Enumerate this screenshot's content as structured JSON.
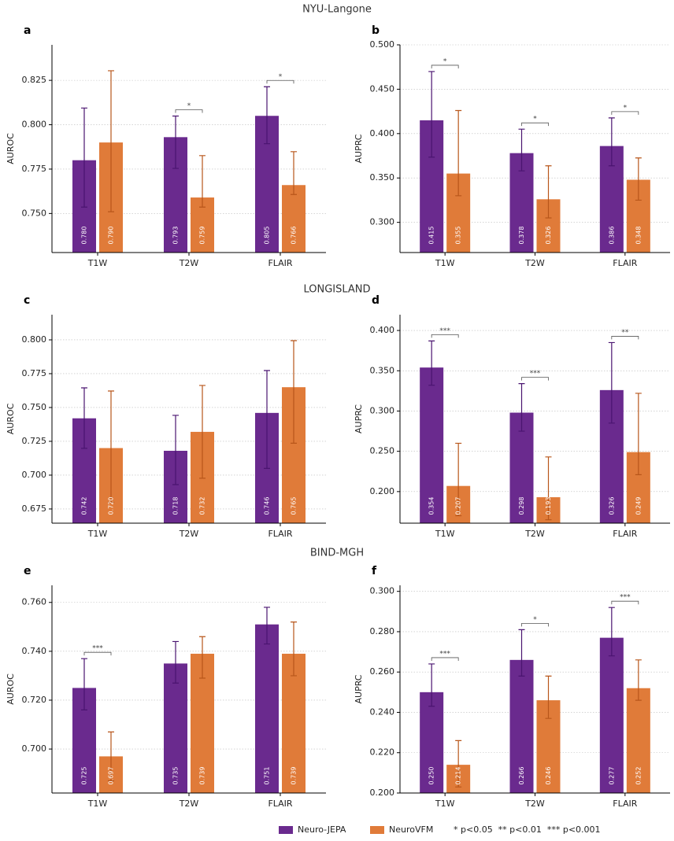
{
  "section_titles": [
    "NYU-Langone",
    "LONGISLAND",
    "BIND-MGH"
  ],
  "legend_note": "* p<0.05  ** p<0.01  *** p<0.001",
  "chart_data": [
    {
      "type": "bar",
      "panel": "a",
      "ylabel": "AUROC",
      "categories": [
        "T1W",
        "T2W",
        "FLAIR"
      ],
      "ylim": [
        0.728,
        0.845
      ],
      "yticks": [
        {
          "value": 0.75,
          "label": "0.750"
        },
        {
          "value": 0.775,
          "label": "0.775"
        },
        {
          "value": 0.8,
          "label": "0.800"
        },
        {
          "value": 0.825,
          "label": "0.825"
        }
      ],
      "grid": true,
      "significance": [
        null,
        "*",
        "*"
      ],
      "series": [
        {
          "name": "Neuro-JEPA",
          "color": "#6a2a8e",
          "error_color": "#4a1470",
          "values": [
            0.78,
            0.793,
            0.805
          ],
          "value_labels": [
            "0.780",
            "0.793",
            "0.805"
          ],
          "ci_low": [
            0.7536,
            0.7754,
            0.7893
          ],
          "ci_high": [
            0.8094,
            0.8049,
            0.8214
          ]
        },
        {
          "name": "NeuroVFM",
          "color": "#e07b39",
          "error_color": "#b8561a",
          "values": [
            0.79,
            0.759,
            0.766
          ],
          "value_labels": [
            "0.790",
            "0.759",
            "0.766"
          ],
          "ci_low": [
            0.751,
            0.7536,
            0.7607
          ],
          "ci_high": [
            0.8304,
            0.7826,
            0.7848
          ]
        }
      ]
    },
    {
      "type": "bar",
      "panel": "b",
      "ylabel": "AUPRC",
      "categories": [
        "T1W",
        "T2W",
        "FLAIR"
      ],
      "ylim": [
        0.266,
        0.5
      ],
      "yticks": [
        {
          "value": 0.3,
          "label": "0.300"
        },
        {
          "value": 0.35,
          "label": "0.350"
        },
        {
          "value": 0.4,
          "label": "0.400"
        },
        {
          "value": 0.45,
          "label": "0.450"
        },
        {
          "value": 0.5,
          "label": "0.500"
        }
      ],
      "grid": true,
      "significance": [
        "*",
        "*",
        "*"
      ],
      "series": [
        {
          "name": "Neuro-JEPA",
          "color": "#6a2a8e",
          "error_color": "#4a1470",
          "values": [
            0.415,
            0.378,
            0.386
          ],
          "value_labels": [
            "0.415",
            "0.378",
            "0.386"
          ],
          "ci_low": [
            0.3735,
            0.358,
            0.3637
          ],
          "ci_high": [
            0.4699,
            0.405,
            0.4177
          ]
        },
        {
          "name": "NeuroVFM",
          "color": "#e07b39",
          "error_color": "#b8561a",
          "values": [
            0.355,
            0.326,
            0.348
          ],
          "value_labels": [
            "0.355",
            "0.326",
            "0.348"
          ],
          "ci_low": [
            0.33,
            0.305,
            0.325
          ],
          "ci_high": [
            0.426,
            0.3637,
            0.3726
          ]
        }
      ]
    },
    {
      "type": "bar",
      "panel": "c",
      "ylabel": "AUROC",
      "categories": [
        "T1W",
        "T2W",
        "FLAIR"
      ],
      "ylim": [
        0.6645,
        0.8186
      ],
      "yticks": [
        {
          "value": 0.675,
          "label": "0.675"
        },
        {
          "value": 0.7,
          "label": "0.700"
        },
        {
          "value": 0.725,
          "label": "0.725"
        },
        {
          "value": 0.75,
          "label": "0.750"
        },
        {
          "value": 0.775,
          "label": "0.775"
        },
        {
          "value": 0.8,
          "label": "0.800"
        }
      ],
      "grid": true,
      "significance": [
        null,
        null,
        null
      ],
      "series": [
        {
          "name": "Neuro-JEPA",
          "color": "#6a2a8e",
          "error_color": "#4a1470",
          "values": [
            0.742,
            0.718,
            0.746
          ],
          "value_labels": [
            "0.742",
            "0.718",
            "0.746"
          ],
          "ci_low": [
            0.7198,
            0.693,
            0.705
          ],
          "ci_high": [
            0.7645,
            0.7442,
            0.7773
          ]
        },
        {
          "name": "NeuroVFM",
          "color": "#e07b39",
          "error_color": "#b8561a",
          "values": [
            0.72,
            0.732,
            0.765
          ],
          "value_labels": [
            "0.720",
            "0.732",
            "0.765"
          ],
          "ci_low": [
            0.68,
            0.6977,
            0.7236
          ],
          "ci_high": [
            0.7622,
            0.7663,
            0.7994
          ]
        }
      ]
    },
    {
      "type": "bar",
      "panel": "d",
      "ylabel": "AUPRC",
      "categories": [
        "T1W",
        "T2W",
        "FLAIR"
      ],
      "ylim": [
        0.1608,
        0.4196
      ],
      "yticks": [
        {
          "value": 0.2,
          "label": "0.200"
        },
        {
          "value": 0.25,
          "label": "0.250"
        },
        {
          "value": 0.3,
          "label": "0.300"
        },
        {
          "value": 0.35,
          "label": "0.350"
        },
        {
          "value": 0.4,
          "label": "0.400"
        }
      ],
      "grid": true,
      "significance": [
        "***",
        "***",
        "**"
      ],
      "series": [
        {
          "name": "Neuro-JEPA",
          "color": "#6a2a8e",
          "error_color": "#4a1470",
          "values": [
            0.354,
            0.298,
            0.326
          ],
          "value_labels": [
            "0.354",
            "0.298",
            "0.326"
          ],
          "ci_low": [
            0.332,
            0.275,
            0.285
          ],
          "ci_high": [
            0.387,
            0.334,
            0.385
          ]
        },
        {
          "name": "NeuroVFM",
          "color": "#e07b39",
          "error_color": "#b8561a",
          "values": [
            0.207,
            0.193,
            0.249
          ],
          "value_labels": [
            "0.207",
            "0.193",
            "0.249"
          ],
          "ci_low": [
            0.17,
            0.165,
            0.221
          ],
          "ci_high": [
            0.26,
            0.243,
            0.322
          ]
        }
      ]
    },
    {
      "type": "bar",
      "panel": "e",
      "ylabel": "AUROC",
      "categories": [
        "T1W",
        "T2W",
        "FLAIR"
      ],
      "ylim": [
        0.682,
        0.767
      ],
      "yticks": [
        {
          "value": 0.7,
          "label": "0.700"
        },
        {
          "value": 0.72,
          "label": "0.720"
        },
        {
          "value": 0.74,
          "label": "0.740"
        },
        {
          "value": 0.76,
          "label": "0.760"
        }
      ],
      "grid": true,
      "significance": [
        "***",
        null,
        null
      ],
      "series": [
        {
          "name": "Neuro-JEPA",
          "color": "#6a2a8e",
          "error_color": "#4a1470",
          "values": [
            0.725,
            0.735,
            0.751
          ],
          "value_labels": [
            "0.725",
            "0.735",
            "0.751"
          ],
          "ci_low": [
            0.716,
            0.727,
            0.743
          ],
          "ci_high": [
            0.737,
            0.744,
            0.758
          ]
        },
        {
          "name": "NeuroVFM",
          "color": "#e07b39",
          "error_color": "#b8561a",
          "values": [
            0.697,
            0.739,
            0.739
          ],
          "value_labels": [
            "0.697",
            "0.739",
            "0.739"
          ],
          "ci_low": [
            0.687,
            0.729,
            0.73
          ],
          "ci_high": [
            0.707,
            0.746,
            0.752
          ]
        }
      ]
    },
    {
      "type": "bar",
      "panel": "f",
      "ylabel": "AUPRC",
      "categories": [
        "T1W",
        "T2W",
        "FLAIR"
      ],
      "ylim": [
        0.2,
        0.303
      ],
      "yticks": [
        {
          "value": 0.2,
          "label": "0.200"
        },
        {
          "value": 0.22,
          "label": "0.220"
        },
        {
          "value": 0.24,
          "label": "0.240"
        },
        {
          "value": 0.26,
          "label": "0.260"
        },
        {
          "value": 0.28,
          "label": "0.280"
        },
        {
          "value": 0.3,
          "label": "0.300"
        }
      ],
      "grid": true,
      "significance": [
        "***",
        "*",
        "***"
      ],
      "series": [
        {
          "name": "Neuro-JEPA",
          "color": "#6a2a8e",
          "error_color": "#4a1470",
          "values": [
            0.25,
            0.266,
            0.277
          ],
          "value_labels": [
            "0.250",
            "0.266",
            "0.277"
          ],
          "ci_low": [
            0.243,
            0.258,
            0.268
          ],
          "ci_high": [
            0.264,
            0.281,
            0.292
          ]
        },
        {
          "name": "NeuroVFM",
          "color": "#e07b39",
          "error_color": "#b8561a",
          "values": [
            0.214,
            0.246,
            0.252
          ],
          "value_labels": [
            "0.214",
            "0.246",
            "0.252"
          ],
          "ci_low": [
            0.203,
            0.237,
            0.246
          ],
          "ci_high": [
            0.226,
            0.258,
            0.266
          ]
        }
      ]
    }
  ]
}
